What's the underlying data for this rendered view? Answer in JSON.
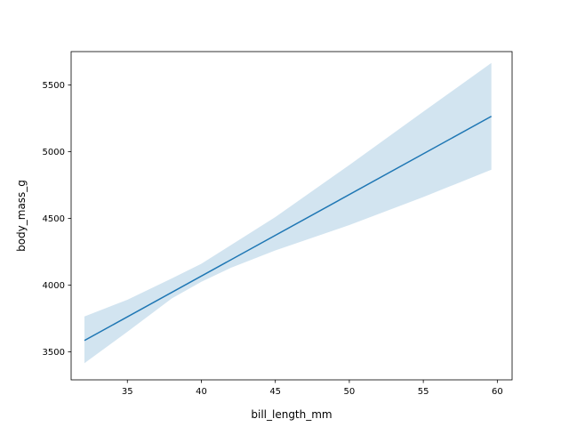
{
  "chart_data": {
    "type": "line",
    "title": "",
    "xlabel": "bill_length_mm",
    "ylabel": "body_mass_g",
    "xlim": [
      31.2,
      61.0
    ],
    "ylim": [
      3290,
      5750
    ],
    "xticks": [
      35,
      40,
      45,
      50,
      55,
      60
    ],
    "yticks": [
      3500,
      4000,
      4500,
      5000,
      5500
    ],
    "grid": false,
    "series": [
      {
        "color": "#1f77b4",
        "x": [
          32.1,
          59.6
        ],
        "y": [
          3585,
          5265
        ]
      }
    ],
    "confidence_band": {
      "color": "#1f77b4",
      "opacity": 0.2,
      "x": [
        32.1,
        35.0,
        38.0,
        40.0,
        42.0,
        45.0,
        50.0,
        55.0,
        59.6
      ],
      "upper": [
        3765,
        3890,
        4050,
        4160,
        4300,
        4510,
        4900,
        5300,
        5665
      ],
      "lower": [
        3415,
        3650,
        3900,
        4025,
        4130,
        4260,
        4450,
        4660,
        4865
      ]
    }
  }
}
